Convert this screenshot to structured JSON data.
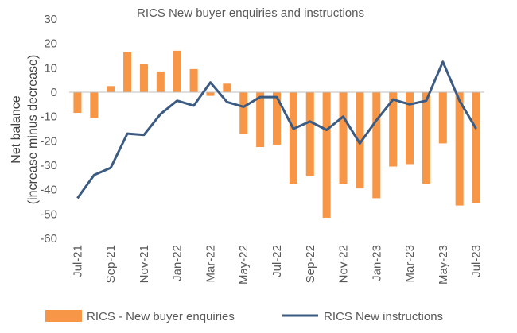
{
  "chart_data": {
    "type": "bar",
    "title": "RICS New buyer enquiries and instructions",
    "ylabel_lines": [
      "Net balance",
      "(increase minus decrease)"
    ],
    "ylim": [
      -60,
      30
    ],
    "yticks": [
      30,
      20,
      10,
      0,
      -10,
      -20,
      -30,
      -40,
      -50,
      -60
    ],
    "categories": [
      "Jul-21",
      "Aug-21",
      "Sep-21",
      "Oct-21",
      "Nov-21",
      "Dec-21",
      "Jan-22",
      "Feb-22",
      "Mar-22",
      "Apr-22",
      "May-22",
      "Jun-22",
      "Jul-22",
      "Aug-22",
      "Sep-22",
      "Oct-22",
      "Nov-22",
      "Dec-22",
      "Jan-23",
      "Feb-23",
      "Mar-23",
      "Apr-23",
      "May-23",
      "Jun-23",
      "Jul-23"
    ],
    "xtick_labels": [
      "Jul-21",
      "Sep-21",
      "Nov-21",
      "Jan-22",
      "Mar-22",
      "May-22",
      "Jul-22",
      "Sep-22",
      "Nov-22",
      "Jan-23",
      "Mar-23",
      "May-23",
      "Jul-23"
    ],
    "series": [
      {
        "name": "RICS  - New buyer enquiries",
        "kind": "bar",
        "color": "#F79646",
        "values": [
          -8.5,
          -10.5,
          2.5,
          16.5,
          11.5,
          8.5,
          17,
          9.5,
          -1.5,
          3.5,
          -17,
          -22.5,
          -21.5,
          -37.5,
          -34.5,
          -51.5,
          -37.5,
          -39.5,
          -43.5,
          -30.5,
          -29.5,
          -37.5,
          -21,
          -46.5,
          -45.5
        ]
      },
      {
        "name": "RICS New instructions",
        "kind": "line",
        "color": "#3B5B83",
        "values": [
          -43.5,
          -34,
          -31,
          -17,
          -17.5,
          -9,
          -3.5,
          -5.5,
          4,
          -4,
          -6,
          -2,
          -2,
          -15,
          -12,
          -15.5,
          -10,
          -21,
          -11.5,
          -3,
          -5,
          -3.5,
          12.5,
          -3.5,
          -15
        ]
      }
    ],
    "grid": false,
    "legend_position": "bottom"
  }
}
